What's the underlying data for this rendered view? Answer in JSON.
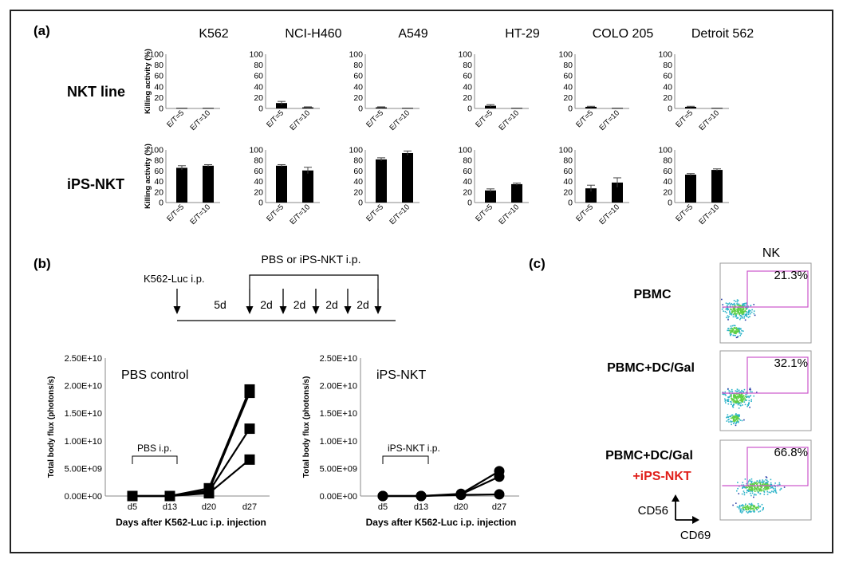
{
  "panel_labels": {
    "a": "(a)",
    "b": "(b)",
    "c": "(c)"
  },
  "panel_a": {
    "cell_lines": [
      "K562",
      "NCI-H460",
      "A549",
      "HT-29",
      "COLO 205",
      "Detroit 562"
    ],
    "row_labels": [
      "NKT line",
      "iPS-NKT"
    ],
    "y_label": "Killing activity (%)",
    "y_ticks": [
      "0",
      "20",
      "40",
      "60",
      "80",
      "100"
    ],
    "x_categories": [
      "E/T=5",
      "E/T=10"
    ],
    "colors": {
      "bar": "#000000"
    }
  },
  "panel_b": {
    "schedule": {
      "k562_label": "K562-Luc i.p.",
      "treatment_label": "PBS or iPS-NKT i.p.",
      "first_interval": "5d",
      "intervals": [
        "2d",
        "2d",
        "2d",
        "2d"
      ]
    },
    "plots": [
      {
        "title": "PBS control",
        "bracket_label": "PBS i.p."
      },
      {
        "title": "iPS-NKT",
        "bracket_label": "iPS-NKT i.p."
      }
    ],
    "y_label": "Total body flux (photons/s)",
    "x_label": "Days after K562-Luc i.p. injection",
    "y_ticks": [
      "0.00E+00",
      "5.00E+09",
      "1.00E+10",
      "1.50E+10",
      "2.00E+10",
      "2.50E+10"
    ],
    "x_ticks": [
      "d5",
      "d13",
      "d20",
      "d27"
    ]
  },
  "panel_c": {
    "header": "NK",
    "conditions": [
      "PBMC",
      "PBMC+DC/Gal",
      "PBMC+DC/Gal"
    ],
    "extra_label": "+iPS-NKT",
    "percentages": [
      "21.3%",
      "32.1%",
      "66.8%"
    ],
    "y_axis_label": "CD56",
    "x_axis_label": "CD69",
    "colors": {
      "extra_label": "#e0201b",
      "gate": "#cc55cc"
    }
  },
  "chart_data": [
    {
      "type": "bar",
      "title": "K562",
      "ylabel": "Killing activity (%)",
      "ylim": [
        0,
        100
      ],
      "categories": [
        "E/T=5",
        "E/T=10"
      ],
      "series": [
        {
          "name": "NKT line",
          "values": [
            1,
            1
          ],
          "errors": [
            0,
            0
          ]
        },
        {
          "name": "iPS-NKT",
          "values": [
            66,
            70
          ],
          "errors": [
            4,
            2
          ]
        }
      ]
    },
    {
      "type": "bar",
      "title": "NCI-H460",
      "ylabel": "Killing activity (%)",
      "ylim": [
        0,
        100
      ],
      "categories": [
        "E/T=5",
        "E/T=10"
      ],
      "series": [
        {
          "name": "NKT line",
          "values": [
            10,
            2
          ],
          "errors": [
            3,
            1
          ]
        },
        {
          "name": "iPS-NKT",
          "values": [
            70,
            61
          ],
          "errors": [
            2,
            6
          ]
        }
      ]
    },
    {
      "type": "bar",
      "title": "A549",
      "ylabel": "Killing activity (%)",
      "ylim": [
        0,
        100
      ],
      "categories": [
        "E/T=5",
        "E/T=10"
      ],
      "series": [
        {
          "name": "NKT line",
          "values": [
            2,
            1
          ],
          "errors": [
            1,
            0
          ]
        },
        {
          "name": "iPS-NKT",
          "values": [
            82,
            94
          ],
          "errors": [
            3,
            4
          ]
        }
      ]
    },
    {
      "type": "bar",
      "title": "HT-29",
      "ylabel": "Killing activity (%)",
      "ylim": [
        0,
        100
      ],
      "categories": [
        "E/T=5",
        "E/T=10"
      ],
      "series": [
        {
          "name": "NKT line",
          "values": [
            5,
            1
          ],
          "errors": [
            2,
            0
          ]
        },
        {
          "name": "iPS-NKT",
          "values": [
            23,
            35
          ],
          "errors": [
            3,
            2
          ]
        }
      ]
    },
    {
      "type": "bar",
      "title": "COLO 205",
      "ylabel": "Killing activity (%)",
      "ylim": [
        0,
        100
      ],
      "categories": [
        "E/T=5",
        "E/T=10"
      ],
      "series": [
        {
          "name": "NKT line",
          "values": [
            3,
            1
          ],
          "errors": [
            1,
            0
          ]
        },
        {
          "name": "iPS-NKT",
          "values": [
            27,
            38
          ],
          "errors": [
            6,
            9
          ]
        }
      ]
    },
    {
      "type": "bar",
      "title": "Detroit 562",
      "ylabel": "Killing activity (%)",
      "ylim": [
        0,
        100
      ],
      "categories": [
        "E/T=5",
        "E/T=10"
      ],
      "series": [
        {
          "name": "NKT line",
          "values": [
            3,
            1
          ],
          "errors": [
            1,
            0
          ]
        },
        {
          "name": "iPS-NKT",
          "values": [
            53,
            62
          ],
          "errors": [
            2,
            2
          ]
        }
      ]
    },
    {
      "type": "line",
      "title": "PBS control",
      "xlabel": "Days after K562-Luc i.p. injection",
      "ylabel": "Total body flux (photons/s)",
      "ylim": [
        0,
        25000000000.0
      ],
      "x": [
        "d5",
        "d13",
        "d20",
        "d27"
      ],
      "marker": "square",
      "series": [
        {
          "values": [
            0,
            0,
            1400000000.0,
            19300000000.0
          ]
        },
        {
          "values": [
            0,
            0,
            1000000000.0,
            18700000000.0
          ]
        },
        {
          "values": [
            0,
            0,
            800000000.0,
            12200000000.0
          ]
        },
        {
          "values": [
            0,
            0,
            500000000.0,
            6600000000.0
          ]
        }
      ]
    },
    {
      "type": "line",
      "title": "iPS-NKT",
      "xlabel": "Days after K562-Luc i.p. injection",
      "ylabel": "Total body flux (photons/s)",
      "ylim": [
        0,
        25000000000.0
      ],
      "x": [
        "d5",
        "d13",
        "d20",
        "d27"
      ],
      "marker": "circle",
      "series": [
        {
          "values": [
            0,
            0,
            400000000.0,
            4500000000.0
          ]
        },
        {
          "values": [
            0,
            0,
            300000000.0,
            3500000000.0
          ]
        },
        {
          "values": [
            0,
            0,
            200000000.0,
            300000000.0
          ]
        }
      ]
    }
  ]
}
